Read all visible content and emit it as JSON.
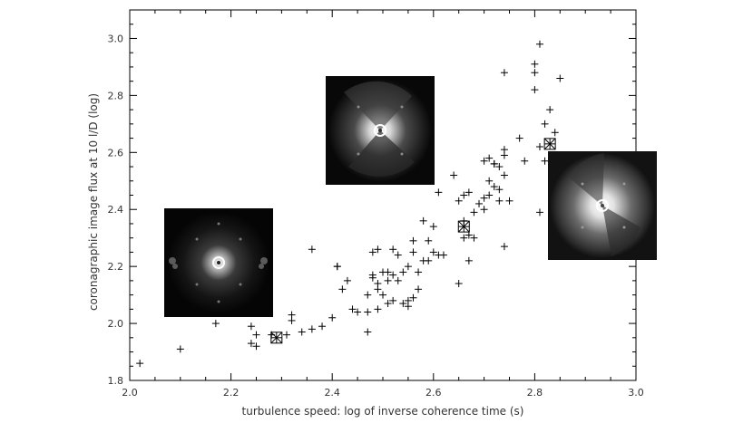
{
  "chart_data": {
    "type": "scatter",
    "title": "",
    "xlabel": "turbulence speed: log of inverse coherence time (s)",
    "ylabel": "coronagraphic image flux at 10 l/D (log)",
    "xlim": [
      2.0,
      3.0
    ],
    "ylim": [
      1.8,
      3.1
    ],
    "xticks": [
      "2.0",
      "2.2",
      "2.4",
      "2.6",
      "2.8",
      "3.0"
    ],
    "yticks": [
      "1.8",
      "2.0",
      "2.2",
      "2.4",
      "2.6",
      "2.8",
      "3.0"
    ],
    "grid": false,
    "marker": "plus",
    "color": "#000000",
    "series": [
      {
        "x": [
          2.02,
          2.1,
          2.17,
          2.24,
          2.24,
          2.25,
          2.25,
          2.28,
          2.31,
          2.32,
          2.32,
          2.34,
          2.36,
          2.36,
          2.38,
          2.4,
          2.41,
          2.41,
          2.42,
          2.43,
          2.44,
          2.45,
          2.47,
          2.47,
          2.47,
          2.48,
          2.48,
          2.48,
          2.49,
          2.49,
          2.49,
          2.49,
          2.5,
          2.5,
          2.51,
          2.51,
          2.51,
          2.52,
          2.52,
          2.52,
          2.53,
          2.53,
          2.54,
          2.54,
          2.55,
          2.55,
          2.55,
          2.56,
          2.56,
          2.56,
          2.57,
          2.57,
          2.58,
          2.58,
          2.59,
          2.59,
          2.6,
          2.6,
          2.61,
          2.61,
          2.62,
          2.64,
          2.65,
          2.65,
          2.66,
          2.66,
          2.66,
          2.67,
          2.67,
          2.67,
          2.68,
          2.68,
          2.69,
          2.7,
          2.7,
          2.7,
          2.71,
          2.71,
          2.71,
          2.72,
          2.72,
          2.72,
          2.73,
          2.73,
          2.73,
          2.74,
          2.74,
          2.74,
          2.74,
          2.74,
          2.75,
          2.77,
          2.78,
          2.8,
          2.8,
          2.8,
          2.81,
          2.81,
          2.81,
          2.82,
          2.82,
          2.83,
          2.84,
          2.85
        ],
        "y": [
          1.86,
          1.91,
          2.0,
          1.93,
          1.99,
          1.92,
          1.96,
          1.96,
          1.96,
          2.03,
          2.01,
          1.97,
          1.98,
          2.26,
          1.99,
          2.02,
          2.2,
          2.2,
          2.12,
          2.15,
          2.05,
          2.04,
          2.1,
          1.97,
          2.04,
          2.16,
          2.25,
          2.17,
          2.26,
          2.14,
          2.12,
          2.05,
          2.18,
          2.1,
          2.07,
          2.15,
          2.18,
          2.08,
          2.26,
          2.17,
          2.24,
          2.15,
          2.18,
          2.07,
          2.08,
          2.06,
          2.2,
          2.09,
          2.25,
          2.29,
          2.18,
          2.12,
          2.22,
          2.36,
          2.22,
          2.29,
          2.25,
          2.34,
          2.24,
          2.46,
          2.24,
          2.52,
          2.14,
          2.43,
          2.45,
          2.36,
          2.3,
          2.46,
          2.22,
          2.31,
          2.39,
          2.3,
          2.42,
          2.44,
          2.57,
          2.4,
          2.45,
          2.5,
          2.58,
          2.56,
          2.48,
          2.56,
          2.47,
          2.43,
          2.55,
          2.88,
          2.59,
          2.61,
          2.52,
          2.27,
          2.43,
          2.65,
          2.57,
          2.91,
          2.88,
          2.82,
          2.98,
          2.39,
          2.62,
          2.7,
          2.57,
          2.75,
          2.67,
          2.86
        ]
      }
    ],
    "highlighted_points": [
      {
        "x": 2.29,
        "y": 1.95
      },
      {
        "x": 2.66,
        "y": 2.34
      },
      {
        "x": 2.83,
        "y": 2.63
      }
    ],
    "insets": [
      {
        "name": "low-turbulence-coronagraphic-image"
      },
      {
        "name": "medium-turbulence-coronagraphic-image"
      },
      {
        "name": "high-turbulence-coronagraphic-image"
      }
    ]
  }
}
